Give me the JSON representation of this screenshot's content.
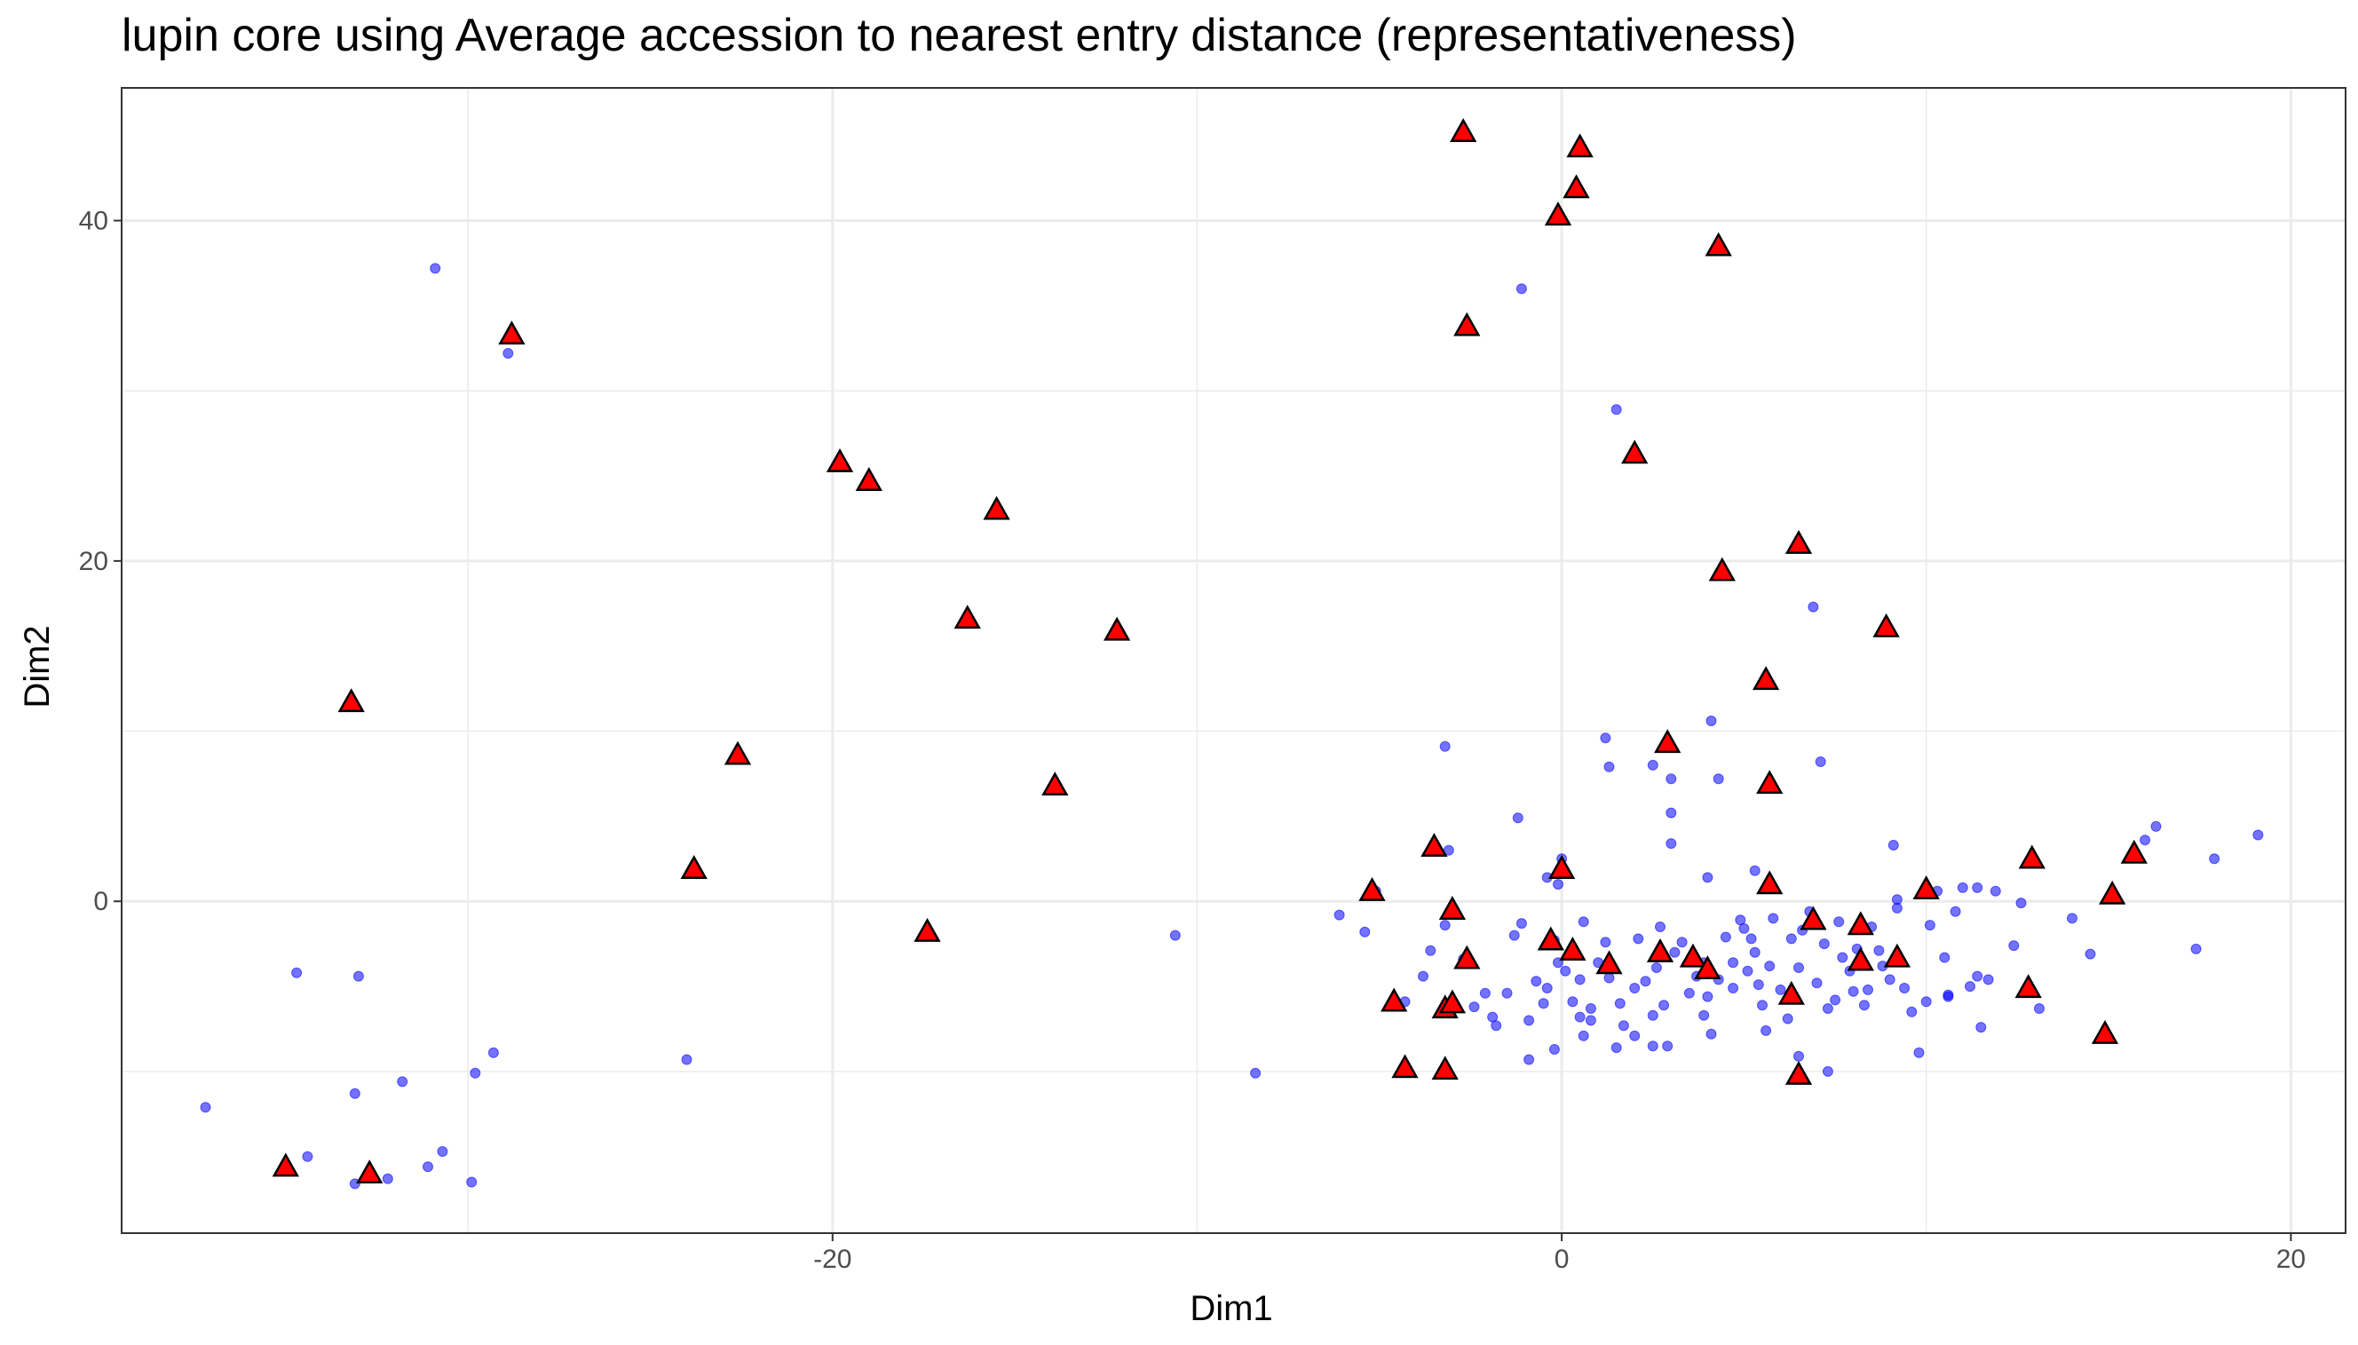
{
  "chart_data": {
    "type": "scatter",
    "title": "lupin core using Average accession to nearest entry distance (representativeness)",
    "xlabel": "Dim1",
    "ylabel": "Dim2",
    "xlim": [
      -39.5,
      21.5
    ],
    "ylim": [
      -19.5,
      47.8
    ],
    "x_ticks": [
      -20,
      0,
      20
    ],
    "y_ticks": [
      0,
      20,
      40
    ],
    "x_tick_labels": [
      "-20",
      "0",
      "20"
    ],
    "y_tick_labels": [
      "0",
      "20",
      "40"
    ],
    "x_minor_ticks": [
      -30,
      -10,
      10
    ],
    "y_minor_ticks": [
      -10,
      10,
      30
    ],
    "grid": true,
    "legend": "none",
    "colors": {
      "accessions": "#0000ff",
      "core": "#ff0000",
      "core_outline": "#000000"
    },
    "series": [
      {
        "marker": "circle",
        "color": "#0000ff",
        "points": [
          [
            -30.9,
            37.2
          ],
          [
            -28.9,
            32.2
          ],
          [
            -37.2,
            -12.1
          ],
          [
            -34.7,
            -4.2
          ],
          [
            -33.0,
            -4.4
          ],
          [
            -33.1,
            -11.3
          ],
          [
            -31.8,
            -10.6
          ],
          [
            -29.8,
            -10.1
          ],
          [
            -29.3,
            -8.9
          ],
          [
            -34.4,
            -15.0
          ],
          [
            -33.1,
            -16.6
          ],
          [
            -32.2,
            -16.3
          ],
          [
            -31.1,
            -15.6
          ],
          [
            -30.7,
            -14.7
          ],
          [
            -29.9,
            -16.5
          ],
          [
            -24.0,
            -9.3
          ],
          [
            -10.6,
            -2.0
          ],
          [
            -8.4,
            -10.1
          ],
          [
            -6.1,
            -0.8
          ],
          [
            -5.4,
            -1.8
          ],
          [
            -5.1,
            0.6
          ],
          [
            -4.3,
            -5.9
          ],
          [
            -3.1,
            3.0
          ],
          [
            -3.6,
            -2.9
          ],
          [
            -3.8,
            -4.4
          ],
          [
            -3.2,
            -1.4
          ],
          [
            -3.2,
            9.1
          ],
          [
            -2.7,
            -3.4
          ],
          [
            -2.4,
            -6.2
          ],
          [
            -2.1,
            -5.4
          ],
          [
            -1.9,
            -6.8
          ],
          [
            -1.8,
            -7.3
          ],
          [
            -1.5,
            -5.4
          ],
          [
            -1.3,
            -2.0
          ],
          [
            -1.1,
            -1.3
          ],
          [
            -0.9,
            -7.0
          ],
          [
            -0.7,
            -4.7
          ],
          [
            -0.5,
            -6.0
          ],
          [
            -0.4,
            -5.1
          ],
          [
            -1.2,
            4.9
          ],
          [
            -0.9,
            -9.3
          ],
          [
            -0.4,
            1.4
          ],
          [
            -0.1,
            1.0
          ],
          [
            -0.2,
            -2.3
          ],
          [
            -0.1,
            -3.6
          ],
          [
            0.1,
            -4.1
          ],
          [
            0.0,
            2.5
          ],
          [
            -0.2,
            -8.7
          ],
          [
            0.3,
            -5.9
          ],
          [
            0.5,
            -4.6
          ],
          [
            0.5,
            -6.8
          ],
          [
            0.6,
            -1.2
          ],
          [
            0.8,
            -6.3
          ],
          [
            1.0,
            -3.6
          ],
          [
            1.2,
            -2.4
          ],
          [
            1.3,
            -4.5
          ],
          [
            1.5,
            -8.6
          ],
          [
            1.6,
            -6.0
          ],
          [
            1.7,
            -7.3
          ],
          [
            2.0,
            -5.1
          ],
          [
            2.1,
            -2.2
          ],
          [
            2.3,
            -4.7
          ],
          [
            2.5,
            -6.7
          ],
          [
            2.6,
            -3.9
          ],
          [
            2.7,
            -1.5
          ],
          [
            2.8,
            -6.1
          ],
          [
            2.9,
            -8.5
          ],
          [
            3.1,
            -3.0
          ],
          [
            3.3,
            -2.4
          ],
          [
            3.5,
            -5.4
          ],
          [
            3.7,
            -4.4
          ],
          [
            3.9,
            -6.7
          ],
          [
            4.0,
            -5.6
          ],
          [
            4.1,
            -7.8
          ],
          [
            4.3,
            -4.6
          ],
          [
            4.5,
            -2.1
          ],
          [
            4.7,
            -3.6
          ],
          [
            4.9,
            -1.1
          ],
          [
            5.0,
            -1.6
          ],
          [
            5.1,
            -4.1
          ],
          [
            5.2,
            -2.2
          ],
          [
            5.3,
            -3.0
          ],
          [
            5.4,
            -4.9
          ],
          [
            5.5,
            -6.1
          ],
          [
            5.6,
            -7.6
          ],
          [
            5.7,
            -3.8
          ],
          [
            5.8,
            -1.0
          ],
          [
            6.0,
            -5.2
          ],
          [
            6.2,
            -6.9
          ],
          [
            6.3,
            -2.2
          ],
          [
            6.5,
            -3.9
          ],
          [
            6.6,
            -1.7
          ],
          [
            6.8,
            -0.6
          ],
          [
            7.0,
            -4.8
          ],
          [
            7.2,
            -2.5
          ],
          [
            7.3,
            -6.3
          ],
          [
            7.5,
            -5.8
          ],
          [
            7.6,
            -1.2
          ],
          [
            7.7,
            -3.3
          ],
          [
            7.9,
            -4.1
          ],
          [
            8.0,
            -5.3
          ],
          [
            8.1,
            -2.8
          ],
          [
            8.3,
            -6.1
          ],
          [
            8.4,
            -5.2
          ],
          [
            8.5,
            -1.5
          ],
          [
            8.7,
            -2.9
          ],
          [
            8.8,
            -3.8
          ],
          [
            9.0,
            -4.6
          ],
          [
            9.2,
            -0.4
          ],
          [
            9.4,
            -5.1
          ],
          [
            9.6,
            -6.5
          ],
          [
            9.8,
            -8.9
          ],
          [
            10.0,
            -5.9
          ],
          [
            10.1,
            -1.4
          ],
          [
            10.3,
            0.6
          ],
          [
            10.5,
            -3.3
          ],
          [
            10.6,
            -5.6
          ],
          [
            10.8,
            -0.6
          ],
          [
            11.0,
            0.8
          ],
          [
            11.2,
            -5.0
          ],
          [
            11.4,
            -4.4
          ],
          [
            11.5,
            -7.4
          ],
          [
            11.7,
            -4.6
          ],
          [
            11.9,
            0.6
          ],
          [
            12.4,
            -2.6
          ],
          [
            12.6,
            -0.1
          ],
          [
            13.1,
            -6.3
          ],
          [
            14.0,
            -1.0
          ],
          [
            14.5,
            -3.1
          ],
          [
            16.0,
            3.6
          ],
          [
            16.3,
            4.4
          ],
          [
            17.4,
            -2.8
          ],
          [
            17.9,
            2.5
          ],
          [
            19.1,
            3.9
          ],
          [
            11.4,
            0.8
          ],
          [
            10.6,
            -5.5
          ],
          [
            -1.1,
            36.0
          ],
          [
            1.5,
            28.9
          ],
          [
            6.9,
            17.3
          ],
          [
            4.1,
            10.6
          ],
          [
            3.0,
            5.2
          ],
          [
            3.0,
            3.4
          ],
          [
            4.3,
            7.2
          ],
          [
            1.3,
            7.9
          ],
          [
            1.2,
            9.6
          ],
          [
            2.5,
            8.0
          ],
          [
            3.0,
            7.2
          ],
          [
            4.0,
            1.4
          ],
          [
            5.3,
            1.8
          ],
          [
            7.1,
            8.2
          ],
          [
            9.1,
            3.3
          ],
          [
            9.2,
            0.1
          ],
          [
            6.5,
            -9.1
          ],
          [
            7.3,
            -10.0
          ],
          [
            0.6,
            -7.9
          ],
          [
            0.8,
            -7.0
          ],
          [
            2.0,
            -7.9
          ],
          [
            2.5,
            -8.5
          ],
          [
            4.7,
            -5.1
          ],
          [
            3.9,
            -3.6
          ]
        ]
      },
      {
        "marker": "triangle",
        "color": "#ff0000",
        "points": [
          [
            -2.7,
            45.2
          ],
          [
            0.5,
            44.3
          ],
          [
            0.4,
            41.9
          ],
          [
            -0.1,
            40.3
          ],
          [
            4.3,
            38.5
          ],
          [
            -2.6,
            33.8
          ],
          [
            -28.8,
            33.3
          ],
          [
            -19.8,
            25.8
          ],
          [
            -19.0,
            24.7
          ],
          [
            -15.5,
            23.0
          ],
          [
            2.0,
            26.3
          ],
          [
            6.5,
            21.0
          ],
          [
            4.4,
            19.4
          ],
          [
            -16.3,
            16.6
          ],
          [
            -12.2,
            15.9
          ],
          [
            8.9,
            16.1
          ],
          [
            -33.2,
            11.7
          ],
          [
            5.6,
            13.0
          ],
          [
            -22.6,
            8.6
          ],
          [
            2.9,
            9.3
          ],
          [
            5.7,
            6.9
          ],
          [
            -13.9,
            6.8
          ],
          [
            -3.5,
            3.2
          ],
          [
            -23.8,
            1.9
          ],
          [
            0.0,
            1.9
          ],
          [
            5.7,
            1.0
          ],
          [
            -5.2,
            0.6
          ],
          [
            10.0,
            0.7
          ],
          [
            12.9,
            2.5
          ],
          [
            15.7,
            2.8
          ],
          [
            15.1,
            0.4
          ],
          [
            -3.0,
            -0.5
          ],
          [
            -17.4,
            -1.8
          ],
          [
            6.9,
            -1.1
          ],
          [
            8.2,
            -1.4
          ],
          [
            -0.3,
            -2.3
          ],
          [
            0.3,
            -2.9
          ],
          [
            1.3,
            -3.7
          ],
          [
            2.7,
            -3.0
          ],
          [
            3.6,
            -3.3
          ],
          [
            4.0,
            -4.0
          ],
          [
            -2.6,
            -3.4
          ],
          [
            8.2,
            -3.5
          ],
          [
            9.2,
            -3.3
          ],
          [
            6.3,
            -5.5
          ],
          [
            12.8,
            -5.1
          ],
          [
            -4.6,
            -5.9
          ],
          [
            -3.2,
            -6.3
          ],
          [
            -3.0,
            -6.0
          ],
          [
            -4.3,
            -9.8
          ],
          [
            -3.2,
            -9.9
          ],
          [
            6.5,
            -10.2
          ],
          [
            14.9,
            -7.8
          ],
          [
            -35.0,
            -15.6
          ],
          [
            -32.7,
            -16.0
          ]
        ]
      }
    ]
  }
}
